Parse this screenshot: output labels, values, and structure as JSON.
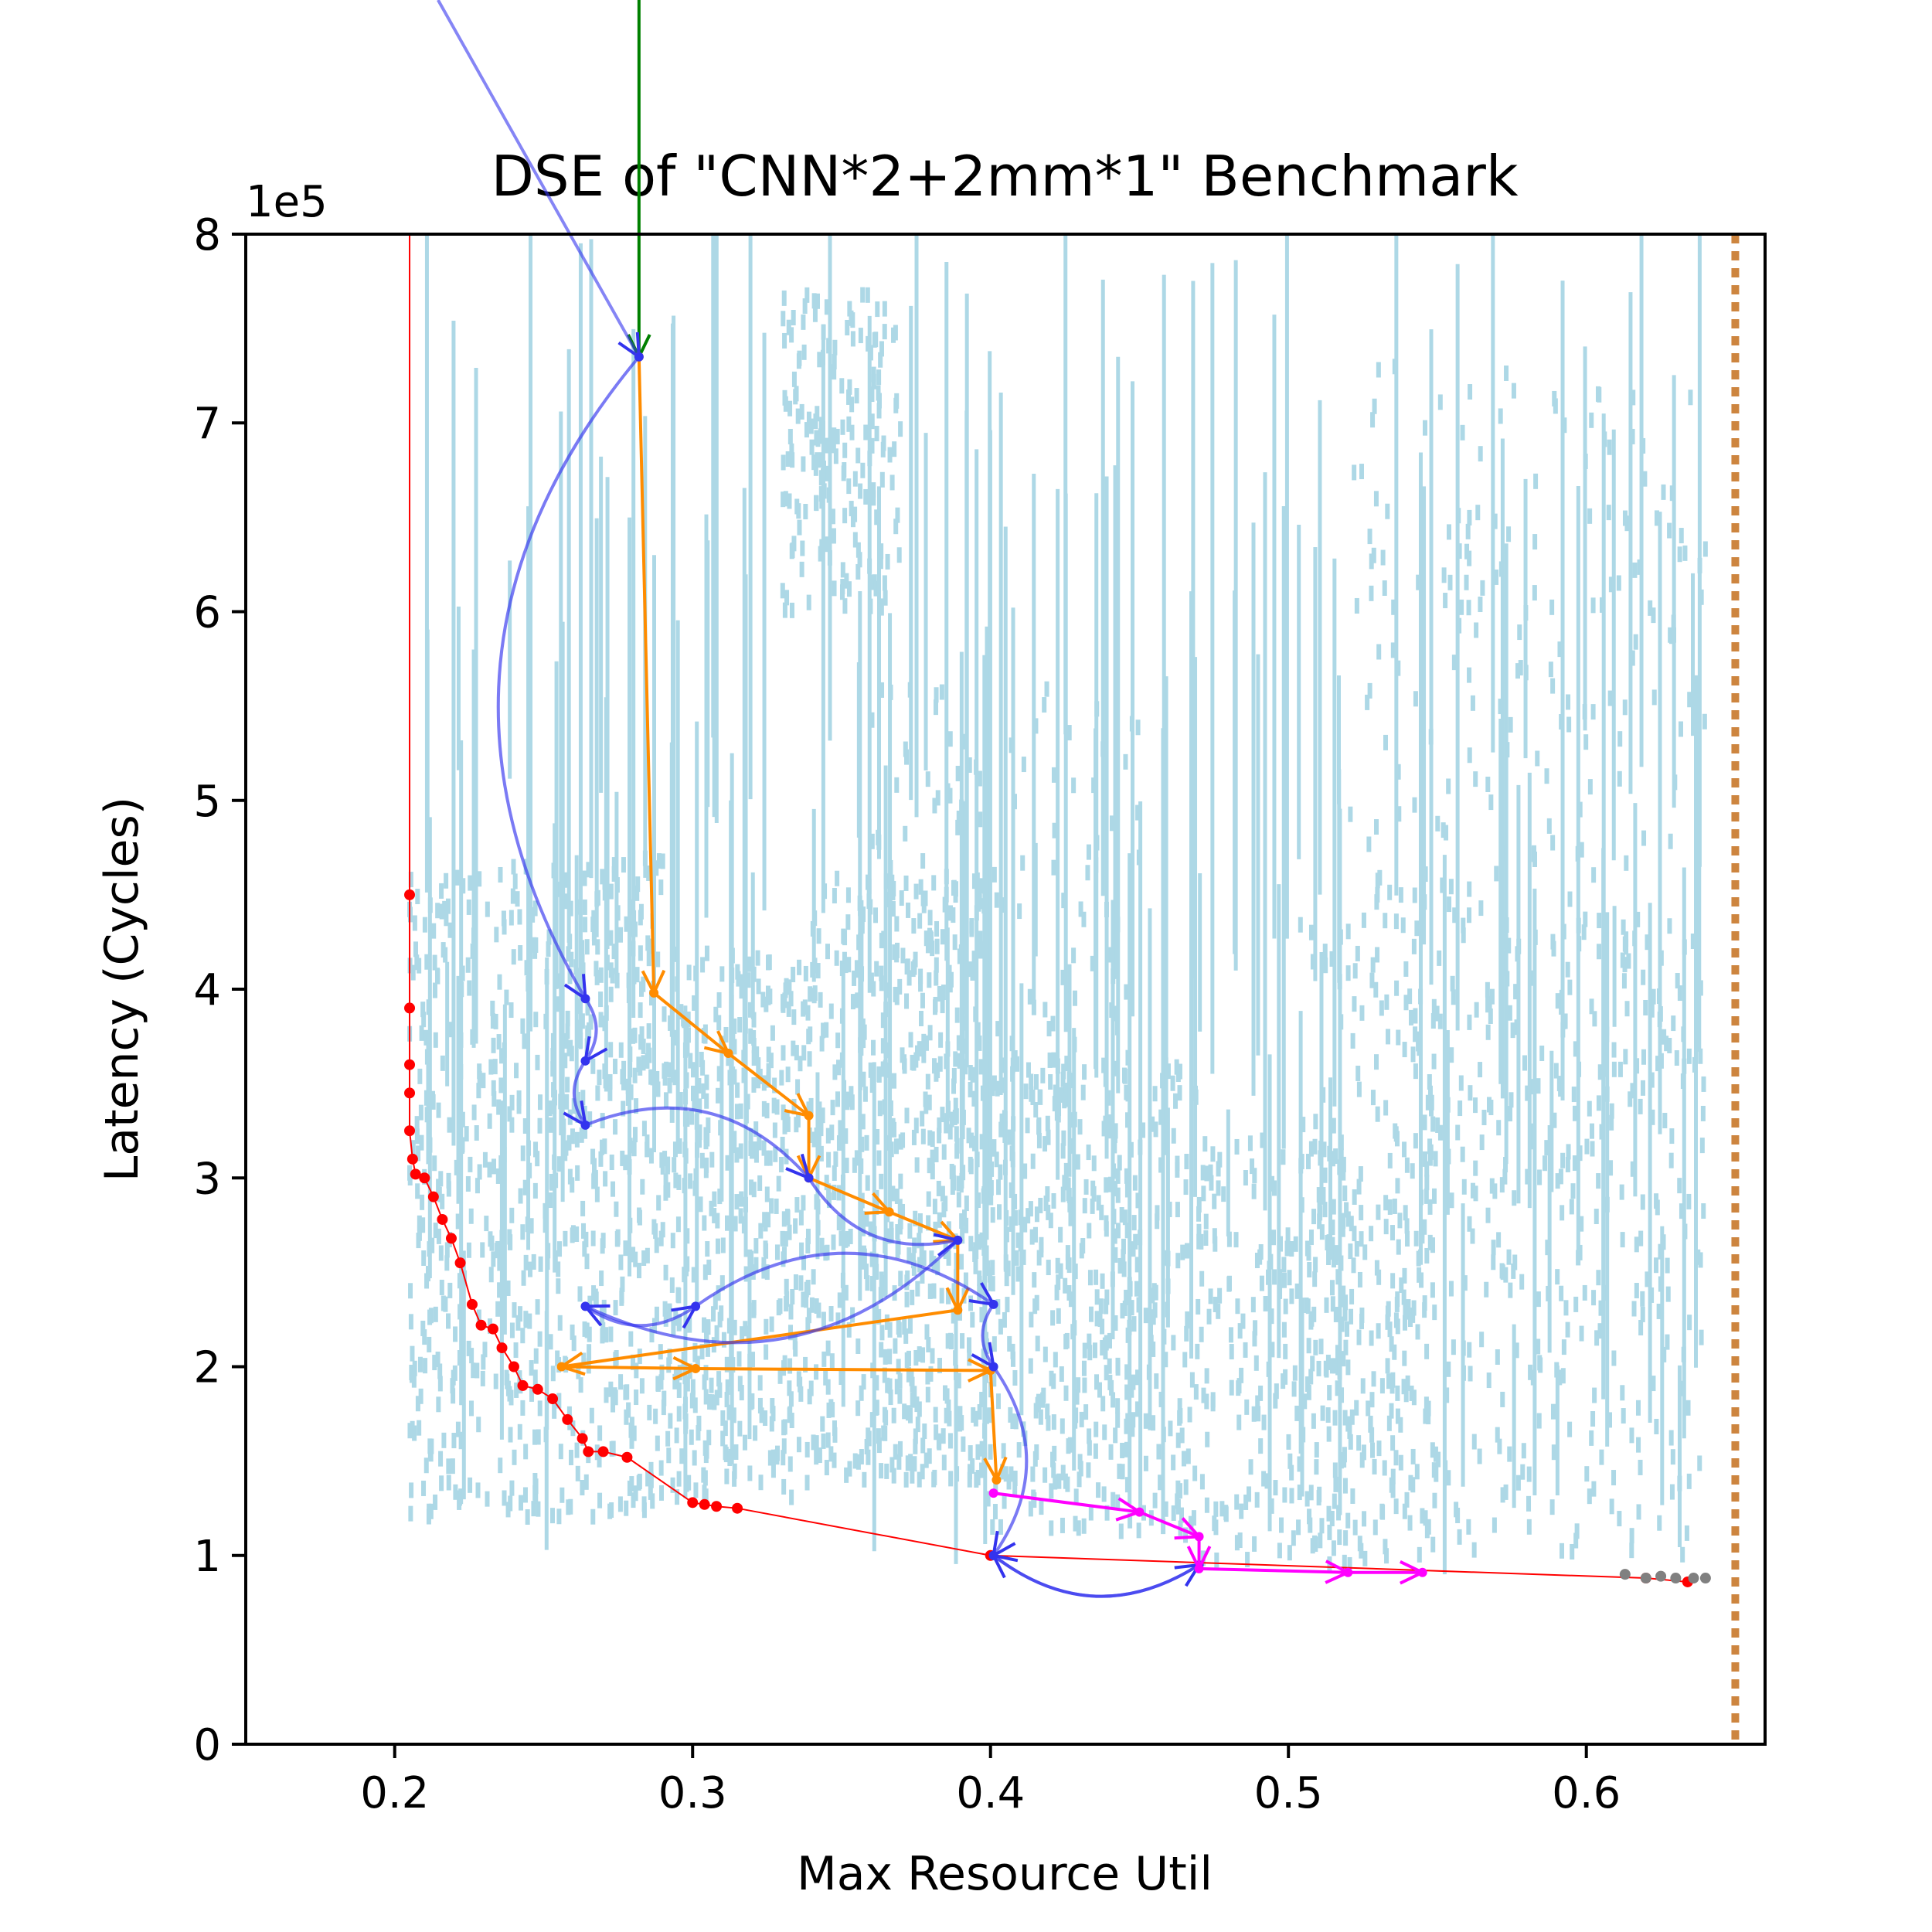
{
  "chart_data": {
    "type": "scatter",
    "title": "DSE of \"CNN*2+2mm*1\" Benchmark",
    "xlabel": "Max Resource Util",
    "ylabel": "Latency (Cycles)",
    "y_offset_label": "1e5",
    "xlim": [
      0.15,
      0.66
    ],
    "ylim": [
      0,
      800000
    ],
    "x_ticks": [
      0.2,
      0.3,
      0.4,
      0.5,
      0.6
    ],
    "x_tick_labels": [
      "0.2",
      "0.3",
      "0.4",
      "0.5",
      "0.6"
    ],
    "y_ticks": [
      0,
      100000,
      200000,
      300000,
      400000,
      500000,
      600000,
      700000,
      800000
    ],
    "y_tick_labels": [
      "0",
      "1",
      "2",
      "3",
      "4",
      "5",
      "6",
      "7",
      "8"
    ],
    "grid": false,
    "resource_limit_x": 0.65,
    "colors": {
      "explored": "#add8e6",
      "pareto": "#ff0000",
      "path_blue": "#3333ee",
      "path_orange": "#ff8c00",
      "path_magenta": "#ff00ff",
      "start_arrow": "#008000",
      "limit_line": "#cd853f",
      "final_points": "#808080"
    },
    "series": [
      {
        "role": "pareto_frontier",
        "x": [
          0.205,
          0.205,
          0.205,
          0.205,
          0.205,
          0.206,
          0.207,
          0.21,
          0.213,
          0.216,
          0.219,
          0.222,
          0.226,
          0.229,
          0.233,
          0.236,
          0.24,
          0.243,
          0.248,
          0.253,
          0.258,
          0.263,
          0.265,
          0.27,
          0.278,
          0.3,
          0.304,
          0.308,
          0.315,
          0.4,
          0.62,
          0.634
        ],
        "y": [
          450000,
          390000,
          360000,
          345000,
          325000,
          310000,
          302000,
          300000,
          290000,
          278000,
          268000,
          255000,
          233000,
          222000,
          220000,
          210000,
          200000,
          190000,
          188000,
          183000,
          172000,
          162000,
          155000,
          155000,
          152000,
          128000,
          127000,
          126000,
          125000,
          100000,
          88000,
          86000
        ]
      },
      {
        "role": "search_path_blue",
        "x": [
          0.282,
          0.264,
          0.264,
          0.264,
          0.339,
          0.389,
          0.264,
          0.301,
          0.401,
          0.401,
          0.401,
          0.47,
          0.401
        ],
        "y": [
          735000,
          395000,
          362000,
          328000,
          300000,
          267000,
          232000,
          232000,
          233000,
          200000,
          100000,
          95000,
          100000
        ]
      },
      {
        "role": "search_path_orange",
        "x": [
          0.282,
          0.287,
          0.312,
          0.339,
          0.339,
          0.366,
          0.389,
          0.389,
          0.256,
          0.301,
          0.4,
          0.402
        ],
        "y": [
          735000,
          398000,
          366000,
          333000,
          300000,
          282000,
          267000,
          230000,
          200000,
          199000,
          198000,
          140000
        ]
      },
      {
        "role": "search_path_magenta",
        "x": [
          0.401,
          0.45,
          0.47,
          0.47,
          0.52,
          0.545
        ],
        "y": [
          133000,
          123000,
          110000,
          93000,
          91000,
          91000
        ]
      },
      {
        "role": "final_points",
        "x": [
          0.613,
          0.62,
          0.625,
          0.63,
          0.636,
          0.64
        ],
        "y": [
          90000,
          88000,
          89000,
          88000,
          88000,
          88000
        ]
      }
    ]
  }
}
